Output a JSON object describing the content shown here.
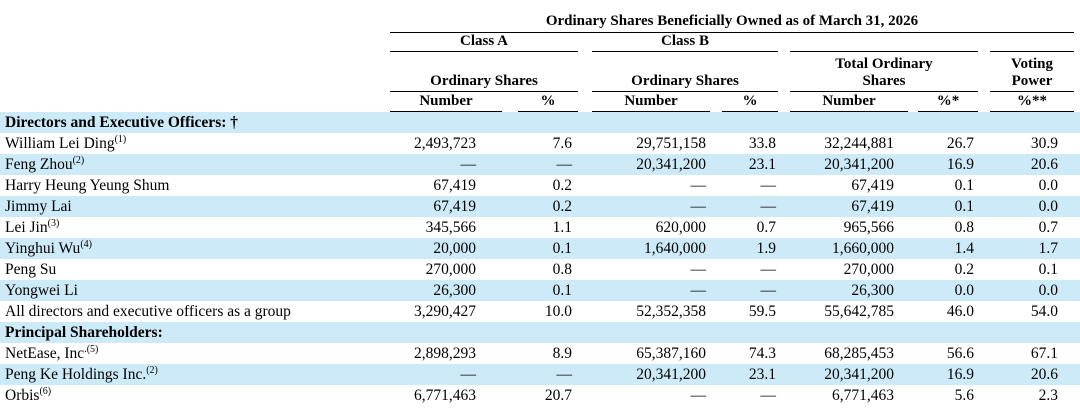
{
  "colors": {
    "row_alt_background": "#cdeaf8",
    "text": "#000000",
    "rule_line": "#000000"
  },
  "table": {
    "title": "Ordinary Shares Beneficially Owned as of March 31, 2026",
    "header": {
      "class_a": "Class A",
      "class_b": "Class B",
      "total_ordinary": "Total Ordinary Shares",
      "voting_power": "Voting Power",
      "ordinary_shares_a": "Ordinary Shares",
      "ordinary_shares_b": "Ordinary Shares",
      "col_number_a": "Number",
      "col_pct_a": "%",
      "col_number_b": "Number",
      "col_pct_b": "%",
      "col_number_total": "Number",
      "col_pct_total": "%*",
      "col_pct_voting": "%**"
    },
    "rows": [
      {
        "type": "section",
        "label": "Directors and Executive Officers: †",
        "footnote": "",
        "values": []
      },
      {
        "type": "data",
        "label": "William Lei Ding",
        "footnote": "(1)",
        "values": [
          "2,493,723",
          "7.6",
          "29,751,158",
          "33.8",
          "32,244,881",
          "26.7",
          "30.9"
        ]
      },
      {
        "type": "data",
        "label": "Feng Zhou",
        "footnote": "(2)",
        "values": [
          "—",
          "—",
          "20,341,200",
          "23.1",
          "20,341,200",
          "16.9",
          "20.6"
        ]
      },
      {
        "type": "data",
        "label": "Harry Heung Yeung Shum",
        "footnote": "",
        "values": [
          "67,419",
          "0.2",
          "—",
          "—",
          "67,419",
          "0.1",
          "0.0"
        ]
      },
      {
        "type": "data",
        "label": "Jimmy Lai",
        "footnote": "",
        "values": [
          "67,419",
          "0.2",
          "—",
          "—",
          "67,419",
          "0.1",
          "0.0"
        ]
      },
      {
        "type": "data",
        "label": "Lei Jin",
        "footnote": "(3)",
        "values": [
          "345,566",
          "1.1",
          "620,000",
          "0.7",
          "965,566",
          "0.8",
          "0.7"
        ]
      },
      {
        "type": "data",
        "label": "Yinghui Wu",
        "footnote": "(4)",
        "values": [
          "20,000",
          "0.1",
          "1,640,000",
          "1.9",
          "1,660,000",
          "1.4",
          "1.7"
        ]
      },
      {
        "type": "data",
        "label": "Peng Su",
        "footnote": "",
        "values": [
          "270,000",
          "0.8",
          "—",
          "—",
          "270,000",
          "0.2",
          "0.1"
        ]
      },
      {
        "type": "data",
        "label": "Yongwei Li",
        "footnote": "",
        "values": [
          "26,300",
          "0.1",
          "—",
          "—",
          "26,300",
          "0.0",
          "0.0"
        ]
      },
      {
        "type": "data",
        "label": "All directors and executive officers as a group",
        "footnote": "",
        "values": [
          "3,290,427",
          "10.0",
          "52,352,358",
          "59.5",
          "55,642,785",
          "46.0",
          "54.0"
        ]
      },
      {
        "type": "section",
        "label": "Principal Shareholders:",
        "footnote": "",
        "values": []
      },
      {
        "type": "data",
        "label": "NetEase, Inc",
        "footnote": ".(5)",
        "values": [
          "2,898,293",
          "8.9",
          "65,387,160",
          "74.3",
          "68,285,453",
          "56.6",
          "67.1"
        ]
      },
      {
        "type": "data",
        "label": "Peng Ke Holdings Inc.",
        "footnote": "(2)",
        "values": [
          "—",
          "—",
          "20,341,200",
          "23.1",
          "20,341,200",
          "16.9",
          "20.6"
        ]
      },
      {
        "type": "data",
        "label": "Orbis",
        "footnote": "(6)",
        "values": [
          "6,771,463",
          "20.7",
          "—",
          "—",
          "6,771,463",
          "5.6",
          "2.3"
        ]
      }
    ]
  }
}
